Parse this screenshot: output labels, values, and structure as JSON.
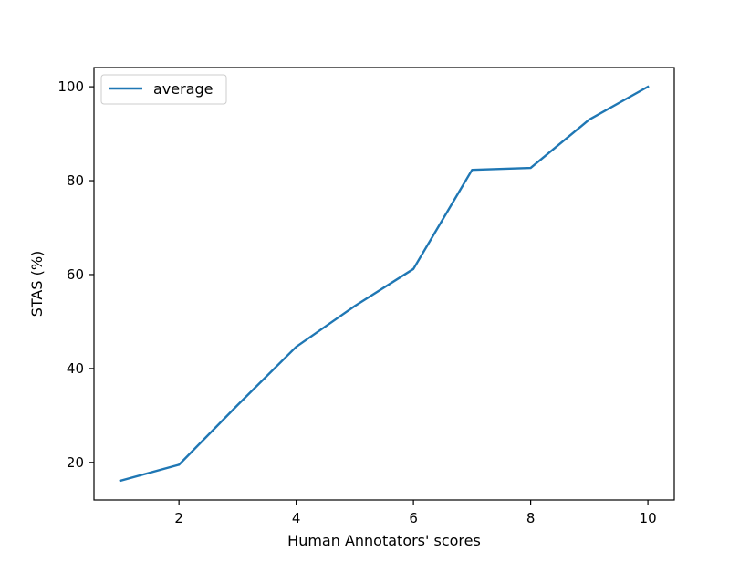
{
  "chart_data": {
    "type": "line",
    "title": "",
    "xlabel": "Human Annotators' scores",
    "ylabel": "STAS (%)",
    "x": [
      1,
      2,
      3,
      4,
      5,
      6,
      7,
      8,
      9,
      10
    ],
    "series": [
      {
        "name": "average",
        "values": [
          16.1,
          19.5,
          32.2,
          44.6,
          53.3,
          61.2,
          82.3,
          82.7,
          93.0,
          100.0
        ],
        "color": "#1f77b4"
      }
    ],
    "xlim": [
      0.55,
      10.45
    ],
    "ylim": [
      12.0,
      104.1
    ],
    "xticks": [
      2,
      4,
      6,
      8,
      10
    ],
    "yticks": [
      20,
      40,
      60,
      80,
      100
    ],
    "grid": false,
    "legend_position": "upper-left"
  }
}
